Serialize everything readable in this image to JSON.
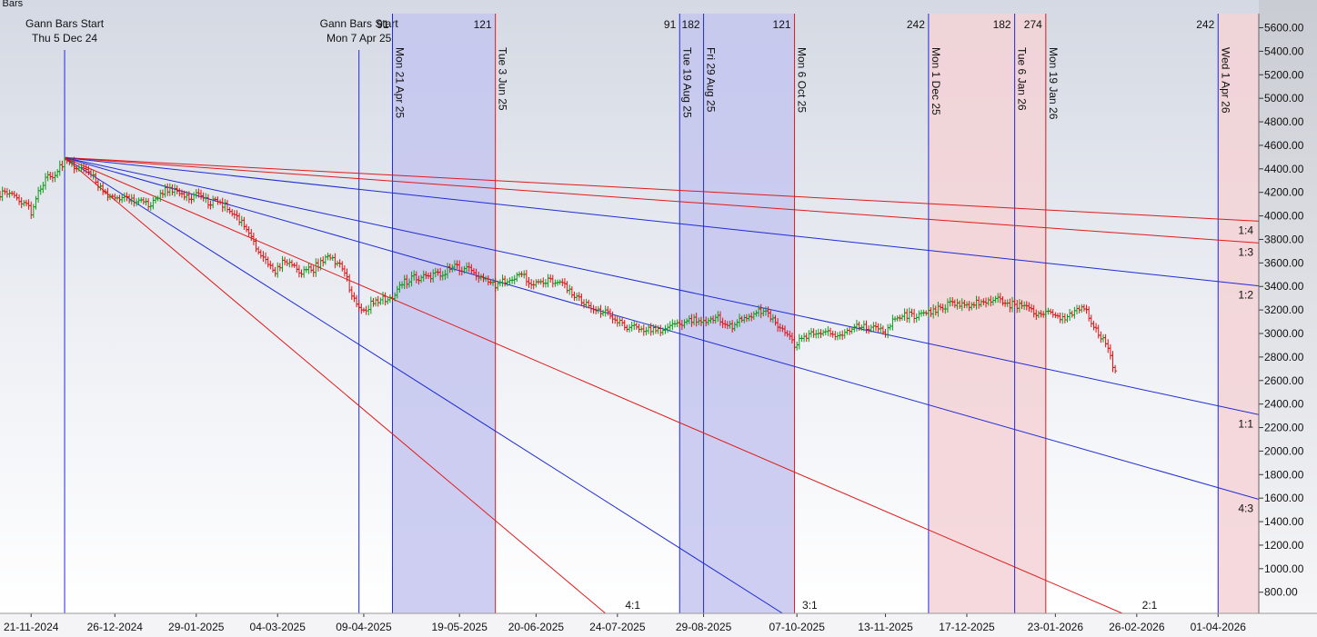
{
  "corner_label": "y Bars",
  "colors": {
    "blue": "#1f2bd6",
    "red": "#e01a1a",
    "blue_zone": "#c4c6ee",
    "red_zone": "#f3d2d6",
    "up_bar": "#0b9a18",
    "down_bar": "#e01010",
    "axis_text": "#111111"
  },
  "chart_data": {
    "type": "line",
    "title": "",
    "ylim": [
      620,
      5720
    ],
    "y_axis_position": "right",
    "grid": false,
    "yticks": [
      800,
      1000,
      1200,
      1400,
      1600,
      1800,
      2000,
      2200,
      2400,
      2600,
      2800,
      3000,
      3200,
      3400,
      3600,
      3800,
      4000,
      4200,
      4400,
      4600,
      4800,
      5000,
      5200,
      5400,
      5600
    ],
    "ytick_labels": [
      "800.00",
      "1000.00",
      "1200.00",
      "1400.00",
      "1600.00",
      "1800.00",
      "2000.00",
      "2200.00",
      "2400.00",
      "2600.00",
      "2800.00",
      "3000.00",
      "3200.00",
      "3400.00",
      "3600.00",
      "3800.00",
      "4000.00",
      "4200.00",
      "4400.00",
      "4600.00",
      "4800.00",
      "5000.00",
      "5200.00",
      "5400.00",
      "5600.00"
    ],
    "x_domain": [
      "2024-11-08",
      "2026-04-18"
    ],
    "xtick_labels": [
      {
        "date": "2024-11-21",
        "label": "21-11-2024"
      },
      {
        "date": "2024-12-26",
        "label": "26-12-2024"
      },
      {
        "date": "2025-01-29",
        "label": "29-01-2025"
      },
      {
        "date": "2025-03-04",
        "label": "04-03-2025"
      },
      {
        "date": "2025-04-09",
        "label": "09-04-2025"
      },
      {
        "date": "2025-05-19",
        "label": "19-05-2025"
      },
      {
        "date": "2025-06-20",
        "label": "20-06-2025"
      },
      {
        "date": "2025-07-24",
        "label": "24-07-2025"
      },
      {
        "date": "2025-08-29",
        "label": "29-08-2025"
      },
      {
        "date": "2025-10-07",
        "label": "07-10-2025"
      },
      {
        "date": "2025-11-13",
        "label": "13-11-2025"
      },
      {
        "date": "2025-12-17",
        "label": "17-12-2025"
      },
      {
        "date": "2026-01-23",
        "label": "23-01-2026"
      },
      {
        "date": "2026-02-26",
        "label": "26-02-2026"
      },
      {
        "date": "2026-04-01",
        "label": "01-04-2026"
      }
    ],
    "shaded_zones": [
      {
        "from": "2025-04-21",
        "to": "2025-06-03",
        "color": "blue"
      },
      {
        "from": "2025-08-19",
        "to": "2025-10-06",
        "color": "blue"
      },
      {
        "from": "2025-12-01",
        "to": "2026-01-19",
        "color": "red"
      },
      {
        "from": "2026-04-01",
        "to": "2026-04-18",
        "color": "red"
      }
    ],
    "start_markers": [
      {
        "date": "2024-12-05",
        "line1": "Gann Bars Start",
        "line2": "Thu 5 Dec 24",
        "color": "blue"
      },
      {
        "date": "2025-04-07",
        "line1": "Gann Bars Start",
        "line2": "Mon 7 Apr 25",
        "color": "blue"
      }
    ],
    "cycle_lines": [
      {
        "date": "2025-04-21",
        "label": "Mon 21 Apr 25",
        "count": "91",
        "color": "blue"
      },
      {
        "date": "2025-06-03",
        "label": "Tue 3 Jun 25",
        "count": "121",
        "color": "red"
      },
      {
        "date": "2025-08-19",
        "label": "Tue 19 Aug 25",
        "count": "91",
        "color": "blue"
      },
      {
        "date": "2025-08-29",
        "label": "Fri 29 Aug 25",
        "count": "182",
        "color": "blue"
      },
      {
        "date": "2025-10-06",
        "label": "Mon 6 Oct 25",
        "count": "121",
        "color": "red"
      },
      {
        "date": "2025-12-01",
        "label": "Mon 1 Dec 25",
        "count": "242",
        "color": "blue"
      },
      {
        "date": "2026-01-06",
        "label": "Tue 6 Jan 26",
        "count": "182",
        "color": "blue"
      },
      {
        "date": "2026-01-19",
        "label": "Mon 19 Jan 26",
        "count": "274",
        "color": "red"
      },
      {
        "date": "2026-04-01",
        "label": "Wed 1 Apr 26",
        "count": "242",
        "color": "blue"
      }
    ],
    "gann_fan": {
      "origin": {
        "date": "2024-12-05",
        "value": 4495
      },
      "lines": [
        {
          "label": "1:4",
          "end_date": "2026-04-18",
          "end_value": 3955,
          "color": "red"
        },
        {
          "label": "1:3",
          "end_date": "2026-04-18",
          "end_value": 3770,
          "color": "red"
        },
        {
          "label": "1:2",
          "end_date": "2026-04-18",
          "end_value": 3405,
          "color": "blue"
        },
        {
          "label": "1:1",
          "end_date": "2026-04-18",
          "end_value": 2310,
          "color": "blue"
        },
        {
          "label": "4:3",
          "end_date": "2026-04-18",
          "end_value": 1590,
          "color": "blue"
        },
        {
          "label": "2:1",
          "end_date": "2026-02-20",
          "end_value": 620,
          "color": "red"
        },
        {
          "label": "3:1",
          "end_date": "2025-10-01",
          "end_value": 620,
          "color": "blue"
        },
        {
          "label": "4:1",
          "end_date": "2025-07-19",
          "end_value": 620,
          "color": "red"
        }
      ]
    },
    "price_series": {
      "name": "",
      "points": [
        [
          "2024-11-08",
          4180
        ],
        [
          "2024-11-12",
          4210
        ],
        [
          "2024-11-15",
          4150
        ],
        [
          "2024-11-19",
          4100
        ],
        [
          "2024-11-21",
          4030
        ],
        [
          "2024-11-25",
          4250
        ],
        [
          "2024-11-28",
          4330
        ],
        [
          "2024-12-02",
          4380
        ],
        [
          "2024-12-05",
          4470
        ],
        [
          "2024-12-09",
          4430
        ],
        [
          "2024-12-12",
          4390
        ],
        [
          "2024-12-16",
          4350
        ],
        [
          "2024-12-19",
          4260
        ],
        [
          "2024-12-23",
          4180
        ],
        [
          "2024-12-27",
          4150
        ],
        [
          "2025-01-02",
          4130
        ],
        [
          "2025-01-06",
          4140
        ],
        [
          "2025-01-09",
          4090
        ],
        [
          "2025-01-13",
          4150
        ],
        [
          "2025-01-16",
          4230
        ],
        [
          "2025-01-21",
          4200
        ],
        [
          "2025-01-24",
          4150
        ],
        [
          "2025-01-29",
          4180
        ],
        [
          "2025-02-03",
          4110
        ],
        [
          "2025-02-06",
          4140
        ],
        [
          "2025-02-10",
          4090
        ],
        [
          "2025-02-14",
          3990
        ],
        [
          "2025-02-18",
          3920
        ],
        [
          "2025-02-21",
          3800
        ],
        [
          "2025-02-26",
          3620
        ],
        [
          "2025-03-03",
          3520
        ],
        [
          "2025-03-06",
          3600
        ],
        [
          "2025-03-11",
          3580
        ],
        [
          "2025-03-14",
          3520
        ],
        [
          "2025-03-19",
          3550
        ],
        [
          "2025-03-24",
          3650
        ],
        [
          "2025-03-27",
          3640
        ],
        [
          "2025-04-01",
          3530
        ],
        [
          "2025-04-04",
          3300
        ],
        [
          "2025-04-09",
          3200
        ],
        [
          "2025-04-14",
          3280
        ],
        [
          "2025-04-21",
          3300
        ],
        [
          "2025-04-25",
          3430
        ],
        [
          "2025-04-30",
          3470
        ],
        [
          "2025-05-06",
          3480
        ],
        [
          "2025-05-12",
          3520
        ],
        [
          "2025-05-16",
          3570
        ],
        [
          "2025-05-21",
          3550
        ],
        [
          "2025-05-27",
          3500
        ],
        [
          "2025-06-03",
          3410
        ],
        [
          "2025-06-09",
          3460
        ],
        [
          "2025-06-13",
          3510
        ],
        [
          "2025-06-18",
          3440
        ],
        [
          "2025-06-24",
          3450
        ],
        [
          "2025-06-30",
          3440
        ],
        [
          "2025-07-04",
          3350
        ],
        [
          "2025-07-10",
          3260
        ],
        [
          "2025-07-16",
          3200
        ],
        [
          "2025-07-22",
          3150
        ],
        [
          "2025-07-28",
          3040
        ],
        [
          "2025-08-01",
          3050
        ],
        [
          "2025-08-07",
          3040
        ],
        [
          "2025-08-13",
          3020
        ],
        [
          "2025-08-19",
          3090
        ],
        [
          "2025-08-25",
          3130
        ],
        [
          "2025-08-29",
          3110
        ],
        [
          "2025-09-04",
          3130
        ],
        [
          "2025-09-10",
          3060
        ],
        [
          "2025-09-16",
          3140
        ],
        [
          "2025-09-22",
          3200
        ],
        [
          "2025-09-26",
          3130
        ],
        [
          "2025-10-01",
          3050
        ],
        [
          "2025-10-06",
          2900
        ],
        [
          "2025-10-10",
          2960
        ],
        [
          "2025-10-16",
          3030
        ],
        [
          "2025-10-22",
          2980
        ],
        [
          "2025-10-28",
          3030
        ],
        [
          "2025-11-03",
          3060
        ],
        [
          "2025-11-07",
          3050
        ],
        [
          "2025-11-13",
          3000
        ],
        [
          "2025-11-17",
          3130
        ],
        [
          "2025-11-21",
          3150
        ],
        [
          "2025-11-27",
          3160
        ],
        [
          "2025-12-03",
          3180
        ],
        [
          "2025-12-09",
          3250
        ],
        [
          "2025-12-15",
          3230
        ],
        [
          "2025-12-19",
          3240
        ],
        [
          "2025-12-24",
          3280
        ],
        [
          "2025-12-29",
          3300
        ],
        [
          "2026-01-02",
          3240
        ],
        [
          "2026-01-06",
          3250
        ],
        [
          "2026-01-12",
          3200
        ],
        [
          "2026-01-16",
          3170
        ],
        [
          "2026-01-21",
          3180
        ],
        [
          "2026-01-26",
          3120
        ],
        [
          "2026-01-30",
          3160
        ],
        [
          "2026-02-03",
          3230
        ],
        [
          "2026-02-05",
          3180
        ],
        [
          "2026-02-09",
          3020
        ],
        [
          "2026-02-12",
          2950
        ],
        [
          "2026-02-16",
          2740
        ],
        [
          "2026-02-18",
          2620
        ]
      ]
    }
  }
}
